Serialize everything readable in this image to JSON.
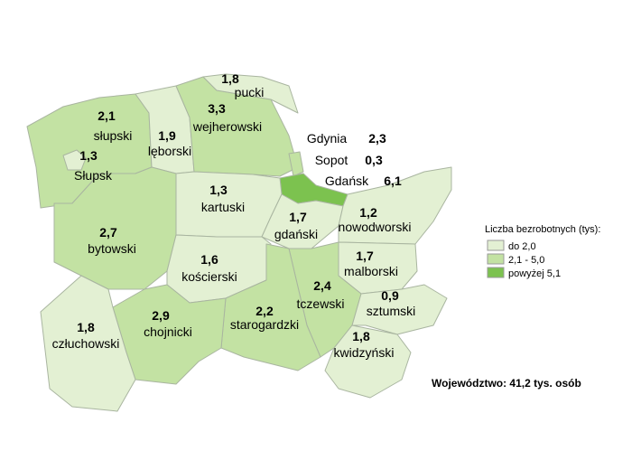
{
  "regions": [
    {
      "name": "słupski",
      "value": 2.1,
      "label": "2,1"
    },
    {
      "name": "Słupsk",
      "value": 1.3,
      "label": "1,3"
    },
    {
      "name": "lęborski",
      "value": 1.9,
      "label": "1,9"
    },
    {
      "name": "wejherowski",
      "value": 3.3,
      "label": "3,3"
    },
    {
      "name": "pucki",
      "value": 1.8,
      "label": "1,8"
    },
    {
      "name": "Gdynia",
      "value": 2.3,
      "label": "2,3"
    },
    {
      "name": "Sopot",
      "value": 0.3,
      "label": "0,3"
    },
    {
      "name": "Gdańsk",
      "value": 6.1,
      "label": "6,1"
    },
    {
      "name": "bytowski",
      "value": 2.7,
      "label": "2,7"
    },
    {
      "name": "kartuski",
      "value": 1.3,
      "label": "1,3"
    },
    {
      "name": "gdański",
      "value": 1.7,
      "label": "1,7"
    },
    {
      "name": "nowodworski",
      "value": 1.2,
      "label": "1,2"
    },
    {
      "name": "kościerski",
      "value": 1.6,
      "label": "1,6"
    },
    {
      "name": "malborski",
      "value": 1.7,
      "label": "1,7"
    },
    {
      "name": "tczewski",
      "value": 2.4,
      "label": "2,4"
    },
    {
      "name": "sztumski",
      "value": 0.9,
      "label": "0,9"
    },
    {
      "name": "starogardzki",
      "value": 2.2,
      "label": "2,2"
    },
    {
      "name": "chojnicki",
      "value": 2.9,
      "label": "2,9"
    },
    {
      "name": "człuchowski",
      "value": 1.8,
      "label": "1,8"
    },
    {
      "name": "kwidzyński",
      "value": 1.8,
      "label": "1,8"
    }
  ],
  "legend": {
    "title": "Liczba bezrobotnych (tys):",
    "items": [
      {
        "label": "do 2,0",
        "max": 2.0,
        "color": "#e3f0d3"
      },
      {
        "label": "2,1 - 5,0",
        "max": 5.0,
        "color": "#c3e2a3"
      },
      {
        "label": "powyżej 5,1",
        "color": "#7cc24f"
      }
    ]
  },
  "footer": "Województwo: 41,2 tys. osób"
}
